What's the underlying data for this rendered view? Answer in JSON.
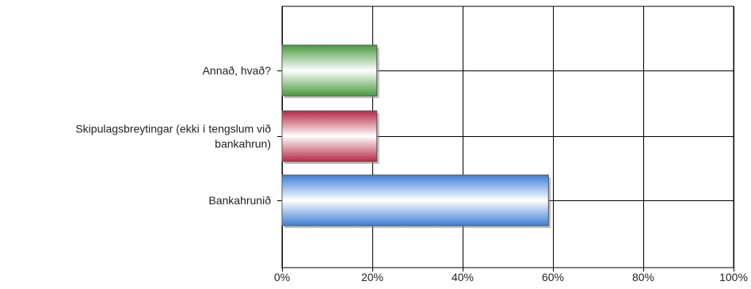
{
  "chart_data": {
    "type": "bar",
    "orientation": "horizontal",
    "categories": [
      [
        "Annað, hvað?"
      ],
      [
        "Skipulagsbreytingar (ekki í tengslum við",
        "bankahrun)"
      ],
      [
        "Bankahrunið"
      ]
    ],
    "values": [
      21,
      21,
      59
    ],
    "colors": [
      "#4a9a3f",
      "#b52a45",
      "#3f7fd6"
    ],
    "xticks": [
      "0%",
      "20%",
      "40%",
      "60%",
      "80%",
      "100%"
    ],
    "xlim": [
      0,
      100
    ],
    "grid": true,
    "title": "",
    "xlabel": "",
    "ylabel": ""
  }
}
